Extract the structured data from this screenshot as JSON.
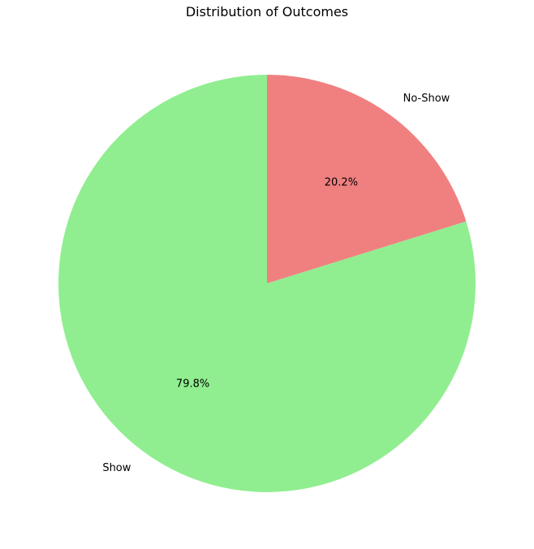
{
  "chart_data": {
    "type": "pie",
    "title": "Distribution of Outcomes",
    "categories": [
      "No-Show",
      "Show"
    ],
    "values": [
      20.2,
      79.8
    ],
    "percent_labels": [
      "20.2%",
      "79.8%"
    ],
    "colors": [
      "#f08080",
      "#90ee90"
    ],
    "start_angle_deg": 90,
    "direction": "clockwise",
    "legend": "none"
  }
}
